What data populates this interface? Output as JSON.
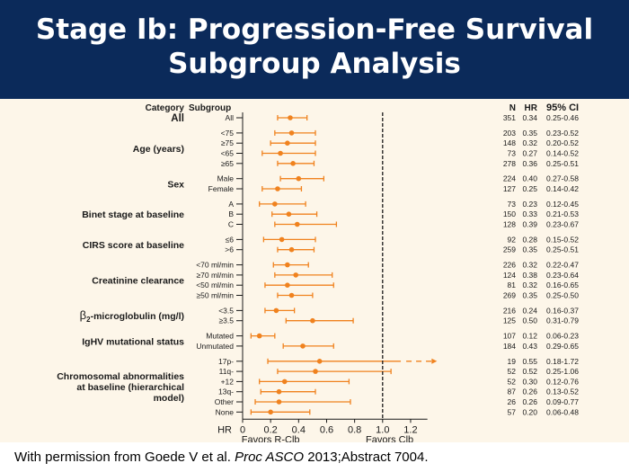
{
  "title_line1": "Stage Ib: Progression-Free Survival",
  "title_line2": "Subgroup Analysis",
  "footer": {
    "prefix": "With permission from Goede V et al. ",
    "journal": "Proc ASCO",
    "suffix": " 2013;Abstract 7004."
  },
  "chart_data": {
    "type": "forest",
    "title": "Stage Ib: Progression-Free Survival Subgroup Analysis",
    "xlabel_left": "Favors R-Clb",
    "xlabel_right": "Favors Clb",
    "axis_label": "HR",
    "xlim": [
      0,
      1.2
    ],
    "reference_line": 1.0,
    "xticks": [
      "0",
      "0.2",
      "0.4",
      "0.6",
      "0.8",
      "1.0",
      "1.2"
    ],
    "xtick_values": [
      0,
      0.2,
      0.4,
      0.6,
      0.8,
      1.0,
      1.2
    ],
    "header": {
      "category": "Category",
      "subgroup": "Subgroup",
      "n": "N",
      "hr": "HR",
      "ci": "95% CI"
    },
    "categories": [
      {
        "label": "All",
        "label_lines": [
          "All"
        ],
        "bold_large": true,
        "rows": [
          {
            "subgroup": "All",
            "n": "351",
            "hr": 0.34,
            "hr_text": "0.34",
            "ci_low": 0.25,
            "ci_high": 0.46,
            "ci_text": "0.25-0.46"
          }
        ]
      },
      {
        "label": "Age (years)",
        "label_lines": [
          "Age (years)"
        ],
        "rows": [
          {
            "subgroup": "<75",
            "n": "203",
            "hr": 0.35,
            "hr_text": "0.35",
            "ci_low": 0.23,
            "ci_high": 0.52,
            "ci_text": "0.23-0.52"
          },
          {
            "subgroup": "≥75",
            "n": "148",
            "hr": 0.32,
            "hr_text": "0.32",
            "ci_low": 0.2,
            "ci_high": 0.52,
            "ci_text": "0.20-0.52"
          },
          {
            "subgroup": "<65",
            "n": "73",
            "hr": 0.27,
            "hr_text": "0.27",
            "ci_low": 0.14,
            "ci_high": 0.52,
            "ci_text": "0.14-0.52"
          },
          {
            "subgroup": "≥65",
            "n": "278",
            "hr": 0.36,
            "hr_text": "0.36",
            "ci_low": 0.25,
            "ci_high": 0.51,
            "ci_text": "0.25-0.51"
          }
        ]
      },
      {
        "label": "Sex",
        "label_lines": [
          "Sex"
        ],
        "rows": [
          {
            "subgroup": "Male",
            "n": "224",
            "hr": 0.4,
            "hr_text": "0.40",
            "ci_low": 0.27,
            "ci_high": 0.58,
            "ci_text": "0.27-0.58"
          },
          {
            "subgroup": "Female",
            "n": "127",
            "hr": 0.25,
            "hr_text": "0.25",
            "ci_low": 0.14,
            "ci_high": 0.42,
            "ci_text": "0.14-0.42"
          }
        ]
      },
      {
        "label": "Binet stage at baseline",
        "label_lines": [
          "Binet stage at baseline"
        ],
        "rows": [
          {
            "subgroup": "A",
            "n": "73",
            "hr": 0.23,
            "hr_text": "0.23",
            "ci_low": 0.12,
            "ci_high": 0.45,
            "ci_text": "0.12-0.45"
          },
          {
            "subgroup": "B",
            "n": "150",
            "hr": 0.33,
            "hr_text": "0.33",
            "ci_low": 0.21,
            "ci_high": 0.53,
            "ci_text": "0.21-0.53"
          },
          {
            "subgroup": "C",
            "n": "128",
            "hr": 0.39,
            "hr_text": "0.39",
            "ci_low": 0.23,
            "ci_high": 0.67,
            "ci_text": "0.23-0.67"
          }
        ]
      },
      {
        "label": "CIRS score at baseline",
        "label_lines": [
          "CIRS score at baseline"
        ],
        "rows": [
          {
            "subgroup": "≤6",
            "n": "92",
            "hr": 0.28,
            "hr_text": "0.28",
            "ci_low": 0.15,
            "ci_high": 0.52,
            "ci_text": "0.15-0.52"
          },
          {
            "subgroup": ">6",
            "n": "259",
            "hr": 0.35,
            "hr_text": "0.35",
            "ci_low": 0.25,
            "ci_high": 0.51,
            "ci_text": "0.25-0.51"
          }
        ]
      },
      {
        "label": "Creatinine clearance",
        "label_lines": [
          "Creatinine clearance"
        ],
        "rows": [
          {
            "subgroup": "<70 ml/min",
            "n": "226",
            "hr": 0.32,
            "hr_text": "0.32",
            "ci_low": 0.22,
            "ci_high": 0.47,
            "ci_text": "0.22-0.47"
          },
          {
            "subgroup": "≥70 ml/min",
            "n": "124",
            "hr": 0.38,
            "hr_text": "0.38",
            "ci_low": 0.23,
            "ci_high": 0.64,
            "ci_text": "0.23-0.64"
          },
          {
            "subgroup": "<50 ml/min",
            "n": "81",
            "hr": 0.32,
            "hr_text": "0.32",
            "ci_low": 0.16,
            "ci_high": 0.65,
            "ci_text": "0.16-0.65"
          },
          {
            "subgroup": "≥50 ml/min",
            "n": "269",
            "hr": 0.35,
            "hr_text": "0.35",
            "ci_low": 0.25,
            "ci_high": 0.5,
            "ci_text": "0.25-0.50"
          }
        ]
      },
      {
        "label": "β2-microglobulin (mg/l)",
        "label_lines": [
          "β2-microglobulin (mg/l)"
        ],
        "beta": true,
        "rows": [
          {
            "subgroup": "<3.5",
            "n": "216",
            "hr": 0.24,
            "hr_text": "0.24",
            "ci_low": 0.16,
            "ci_high": 0.37,
            "ci_text": "0.16-0.37"
          },
          {
            "subgroup": "≥3.5",
            "n": "125",
            "hr": 0.5,
            "hr_text": "0.50",
            "ci_low": 0.31,
            "ci_high": 0.79,
            "ci_text": "0.31-0.79"
          }
        ]
      },
      {
        "label": "IgHV mutational status",
        "label_lines": [
          "IgHV mutational status"
        ],
        "rows": [
          {
            "subgroup": "Mutated",
            "n": "107",
            "hr": 0.12,
            "hr_text": "0.12",
            "ci_low": 0.06,
            "ci_high": 0.23,
            "ci_text": "0.06-0.23"
          },
          {
            "subgroup": "Unmutated",
            "n": "184",
            "hr": 0.43,
            "hr_text": "0.43",
            "ci_low": 0.29,
            "ci_high": 0.65,
            "ci_text": "0.29-0.65"
          }
        ]
      },
      {
        "label": "Chromosomal abnormalities at baseline (hierarchical model)",
        "label_lines": [
          "Chromosomal abnormalities",
          "at baseline (hierarchical",
          "model)"
        ],
        "rows": [
          {
            "subgroup": "17p-",
            "n": "19",
            "hr": 0.55,
            "hr_text": "0.55",
            "ci_low": 0.18,
            "ci_high": 1.72,
            "ci_text": "0.18-1.72",
            "truncated": true
          },
          {
            "subgroup": "11q-",
            "n": "52",
            "hr": 0.52,
            "hr_text": "0.52",
            "ci_low": 0.25,
            "ci_high": 1.06,
            "ci_text": "0.25-1.06"
          },
          {
            "subgroup": "+12",
            "n": "52",
            "hr": 0.3,
            "hr_text": "0.30",
            "ci_low": 0.12,
            "ci_high": 0.76,
            "ci_text": "0.12-0.76"
          },
          {
            "subgroup": "13q-",
            "n": "87",
            "hr": 0.26,
            "hr_text": "0.26",
            "ci_low": 0.13,
            "ci_high": 0.52,
            "ci_text": "0.13-0.52"
          },
          {
            "subgroup": "Other",
            "n": "26",
            "hr": 0.26,
            "hr_text": "0.26",
            "ci_low": 0.09,
            "ci_high": 0.77,
            "ci_text": "0.09-0.77"
          },
          {
            "subgroup": "None",
            "n": "57",
            "hr": 0.2,
            "hr_text": "0.20",
            "ci_low": 0.06,
            "ci_high": 0.48,
            "ci_text": "0.06-0.48"
          }
        ]
      }
    ],
    "colors": {
      "marker": "#f0821e",
      "ci_line": "#f0821e",
      "text": "#1a1a1a"
    }
  }
}
